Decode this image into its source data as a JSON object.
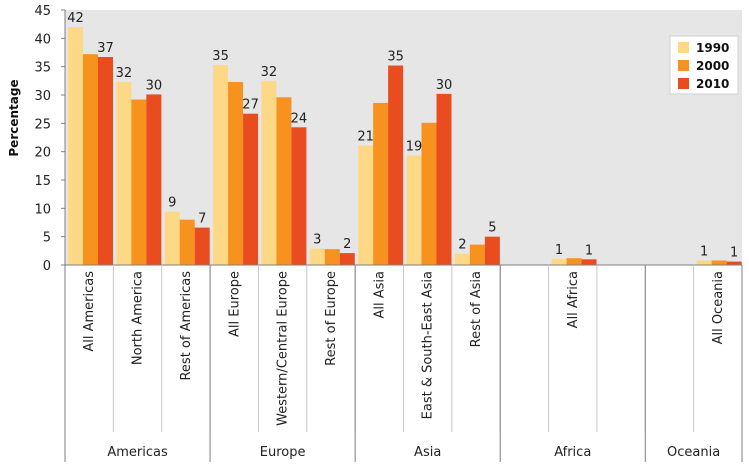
{
  "chart_data": {
    "type": "bar",
    "ylabel": "Percentage",
    "ylim": [
      0,
      45
    ],
    "yticks": [
      0,
      5,
      10,
      15,
      20,
      25,
      30,
      35,
      40,
      45
    ],
    "grid": false,
    "legend_position": "top-right",
    "categories": [
      "All Americas",
      "North America",
      "Rest of Americas",
      "All Europe",
      "Western/Central Europe",
      "Rest of Europe",
      "All Asia",
      "East & South-East Asia",
      "Rest of Asia",
      "",
      "All Africa",
      "",
      "",
      "All Oceania"
    ],
    "groups": [
      {
        "label": "Americas",
        "start": 0,
        "end": 3
      },
      {
        "label": "Europe",
        "start": 3,
        "end": 6
      },
      {
        "label": "Asia",
        "start": 6,
        "end": 9
      },
      {
        "label": "Africa",
        "start": 9,
        "end": 12
      },
      {
        "label": "Oceania",
        "start": 12,
        "end": 14
      }
    ],
    "series": [
      {
        "name": "1990",
        "color": "#fdd887",
        "values": [
          42,
          32.3,
          9.4,
          35.3,
          32.5,
          2.9,
          21.1,
          19.3,
          2.0,
          null,
          1.1,
          null,
          null,
          0.8
        ]
      },
      {
        "name": "2000",
        "color": "#f7921e",
        "values": [
          37.2,
          29.2,
          8.0,
          32.3,
          29.6,
          2.8,
          28.6,
          25.1,
          3.6,
          null,
          1.2,
          null,
          null,
          0.8
        ]
      },
      {
        "name": "2010",
        "color": "#e84c1f",
        "values": [
          36.7,
          30.1,
          6.6,
          26.7,
          24.3,
          2.1,
          35.2,
          30.2,
          5.0,
          null,
          1.0,
          null,
          null,
          0.6
        ]
      }
    ],
    "data_labels": [
      {
        "category": 0,
        "series": 0,
        "text": "42"
      },
      {
        "category": 0,
        "series": 2,
        "text": "37"
      },
      {
        "category": 1,
        "series": 0,
        "text": "32"
      },
      {
        "category": 1,
        "series": 2,
        "text": "30"
      },
      {
        "category": 2,
        "series": 0,
        "text": "9"
      },
      {
        "category": 2,
        "series": 2,
        "text": "7"
      },
      {
        "category": 3,
        "series": 0,
        "text": "35"
      },
      {
        "category": 3,
        "series": 2,
        "text": "27"
      },
      {
        "category": 4,
        "series": 0,
        "text": "32"
      },
      {
        "category": 4,
        "series": 2,
        "text": "24"
      },
      {
        "category": 5,
        "series": 0,
        "text": "3"
      },
      {
        "category": 5,
        "series": 2,
        "text": "2"
      },
      {
        "category": 6,
        "series": 0,
        "text": "21"
      },
      {
        "category": 6,
        "series": 2,
        "text": "35"
      },
      {
        "category": 7,
        "series": 0,
        "text": "19"
      },
      {
        "category": 7,
        "series": 2,
        "text": "30"
      },
      {
        "category": 8,
        "series": 0,
        "text": "2"
      },
      {
        "category": 8,
        "series": 2,
        "text": "5"
      },
      {
        "category": 10,
        "series": 0,
        "text": "1"
      },
      {
        "category": 10,
        "series": 2,
        "text": "1"
      },
      {
        "category": 13,
        "series": 0,
        "text": "1"
      },
      {
        "category": 13,
        "series": 2,
        "text": "1"
      }
    ],
    "colors": {
      "plot_background": "#e6e6e6",
      "axis": "#7f7f7f"
    }
  }
}
